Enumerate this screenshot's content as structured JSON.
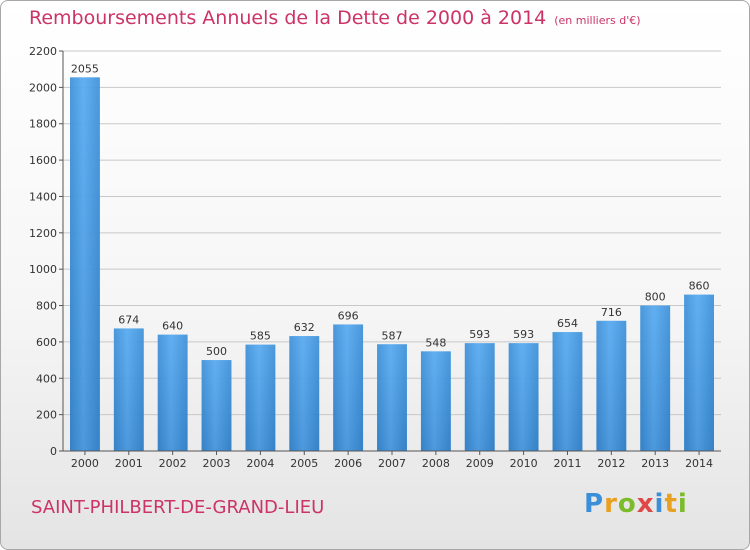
{
  "chart_data": {
    "type": "bar",
    "title": "Remboursements Annuels de la Dette de 2000 à 2014",
    "subtitle": "(en milliers d'€)",
    "xlabel": "",
    "ylabel": "",
    "ylim": [
      0,
      2200
    ],
    "yticks": [
      0,
      200,
      400,
      600,
      800,
      1000,
      1200,
      1400,
      1600,
      1800,
      2000,
      2200
    ],
    "grid": true,
    "categories": [
      "2000",
      "2001",
      "2002",
      "2003",
      "2004",
      "2005",
      "2006",
      "2007",
      "2008",
      "2009",
      "2010",
      "2011",
      "2012",
      "2013",
      "2014"
    ],
    "values": [
      2055,
      674,
      640,
      500,
      585,
      632,
      696,
      587,
      548,
      593,
      593,
      654,
      716,
      800,
      860
    ],
    "bar_color": "#3a8fd8"
  },
  "footer": {
    "city": "SAINT-PHILBERT-DE-GRAND-LIEU",
    "brand": "Proxiti"
  },
  "colors": {
    "accent": "#cc3366"
  }
}
